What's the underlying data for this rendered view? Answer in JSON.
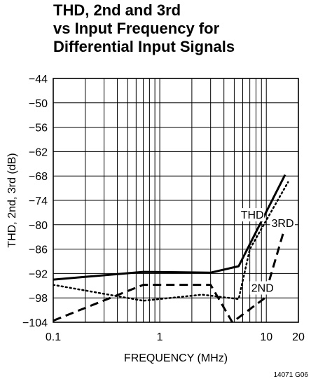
{
  "title_lines": [
    "THD, 2nd and 3rd",
    "vs Input Frequency for",
    "Differential Input Signals"
  ],
  "figure_id": "14071 G06",
  "chart_data": {
    "type": "line",
    "xlabel": "FREQUENCY (MHz)",
    "ylabel": "THD, 2nd, 3rd (dB)",
    "xscale": "log",
    "xlim": [
      0.1,
      20
    ],
    "ylim": [
      -104,
      -44
    ],
    "xtick_labels": [
      {
        "value": 0.1,
        "label": "0.1"
      },
      {
        "value": 1,
        "label": "1"
      },
      {
        "value": 10,
        "label": "10"
      },
      {
        "value": 20,
        "label": "20"
      }
    ],
    "ytick_labels": [
      "-44",
      "-50",
      "-56",
      "-62",
      "-68",
      "-74",
      "-80",
      "-86",
      "-92",
      "-98",
      "-104"
    ],
    "yticks": [
      -44,
      -50,
      -56,
      -62,
      -68,
      -74,
      -80,
      -86,
      -92,
      -98,
      -104
    ],
    "grid": true,
    "series": [
      {
        "name": "THD",
        "style": "solid",
        "color": "#000000",
        "x": [
          0.1,
          0.7,
          3,
          5.5,
          15
        ],
        "y": [
          -93.5,
          -91.6,
          -91.8,
          -90.2,
          -67.7
        ]
      },
      {
        "name": "3RD",
        "style": "dotted",
        "color": "#000000",
        "x": [
          0.1,
          0.7,
          2.5,
          5.5,
          7,
          16
        ],
        "y": [
          -94.8,
          -98.7,
          -97.2,
          -98.3,
          -86,
          -69.5
        ]
      },
      {
        "name": "2ND",
        "style": "dashed",
        "color": "#000000",
        "x": [
          0.1,
          0.7,
          3,
          4.8,
          9.5,
          15
        ],
        "y": [
          -103.6,
          -94.8,
          -94.8,
          -104,
          -98.2,
          -80.5
        ]
      }
    ],
    "annotations": [
      {
        "text": "THD",
        "series": "THD"
      },
      {
        "text": "3RD",
        "series": "3RD"
      },
      {
        "text": "2ND",
        "series": "2ND"
      }
    ]
  }
}
